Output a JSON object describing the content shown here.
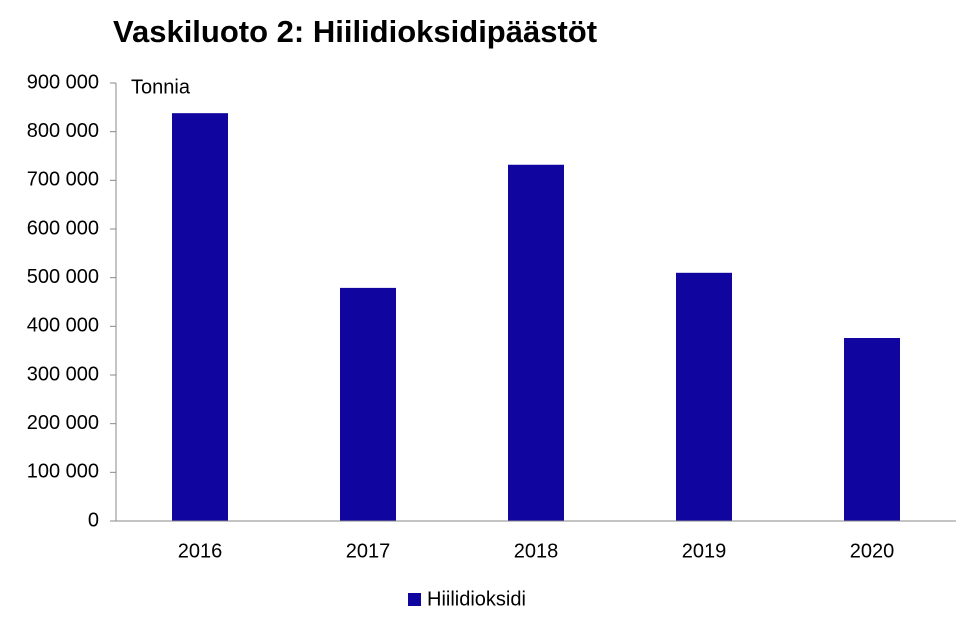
{
  "chart_data": {
    "type": "bar",
    "title": "Vaskiluoto 2: Hiilidioksidipäästöt",
    "y_label": "Tonnia",
    "categories": [
      "2016",
      "2017",
      "2018",
      "2019",
      "2020"
    ],
    "series": [
      {
        "name": "Hiilidioksidi",
        "color": "#10069f",
        "values": [
          838000,
          479000,
          732000,
          510000,
          376000
        ]
      }
    ],
    "ylim": [
      0,
      900000
    ],
    "yticks": [
      0,
      {
        "value": 100000,
        "label": "100 000"
      },
      {
        "value": 200000,
        "label": "200 000"
      },
      {
        "value": 300000,
        "label": "300 000"
      },
      {
        "value": 400000,
        "label": "400 000"
      },
      {
        "value": 500000,
        "label": "500 000"
      },
      {
        "value": 600000,
        "label": "600 000"
      },
      {
        "value": 700000,
        "label": "700 000"
      },
      {
        "value": 800000,
        "label": "800 000"
      },
      {
        "value": 900000,
        "label": "900 000"
      }
    ],
    "grid": false,
    "legend": "bottom"
  }
}
